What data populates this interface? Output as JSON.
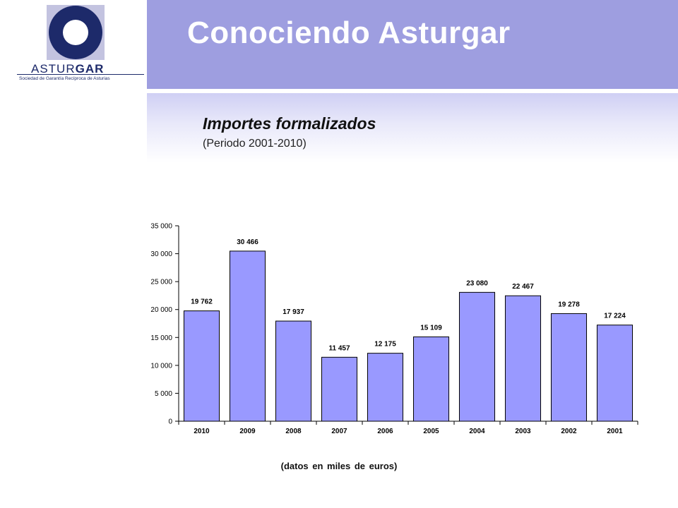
{
  "logo": {
    "brand_light": "ASTUR",
    "brand_bold": "GAR",
    "tagline": "Sociedad de Garantía Recíproca de Asturias"
  },
  "header": {
    "title": "Conociendo Asturgar"
  },
  "section": {
    "title": "Importes formalizados",
    "period": "(Periodo 2001-2010)"
  },
  "footnote": "(datos en miles de euros)",
  "colors": {
    "bar_fill": "#9999ff",
    "header_band": "#9e9ee0",
    "logo_blue": "#1d2a6a"
  },
  "chart_data": {
    "type": "bar",
    "categories": [
      "2010",
      "2009",
      "2008",
      "2007",
      "2006",
      "2005",
      "2004",
      "2003",
      "2002",
      "2001"
    ],
    "values": [
      19762,
      30466,
      17937,
      11457,
      12175,
      15109,
      23080,
      22467,
      19278,
      17224
    ],
    "value_labels": [
      "19 762",
      "30 466",
      "17 937",
      "11 457",
      "12 175",
      "15 109",
      "23 080",
      "22 467",
      "19 278",
      "17 224"
    ],
    "yticks": [
      0,
      5000,
      10000,
      15000,
      20000,
      25000,
      30000,
      35000
    ],
    "ytick_labels": [
      "0",
      "5 000",
      "10 000",
      "15 000",
      "20 000",
      "25 000",
      "30 000",
      "35 000"
    ],
    "ylim": [
      0,
      35000
    ],
    "grid": false,
    "legend": false
  }
}
